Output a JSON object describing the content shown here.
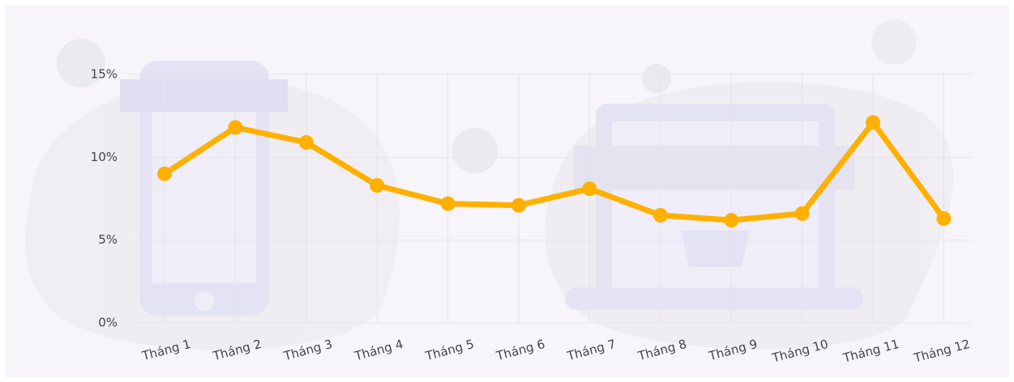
{
  "chart_data": {
    "type": "line",
    "categories": [
      "Tháng 1",
      "Tháng 2",
      "Tháng 3",
      "Tháng 4",
      "Tháng 5",
      "Tháng 6",
      "Tháng 7",
      "Tháng 8",
      "Tháng 9",
      "Tháng 10",
      "Tháng 11",
      "Tháng 12"
    ],
    "values": [
      9.0,
      11.8,
      10.9,
      8.3,
      7.2,
      7.1,
      8.1,
      6.5,
      6.2,
      6.6,
      12.1,
      6.3
    ],
    "color": "#ffb000",
    "ylim": [
      0,
      15
    ],
    "yticks": [
      {
        "value": 0,
        "label": "0%"
      },
      {
        "value": 5,
        "label": "5%"
      },
      {
        "value": 10,
        "label": "10%"
      },
      {
        "value": 15,
        "label": "15%"
      }
    ],
    "grid": true
  }
}
